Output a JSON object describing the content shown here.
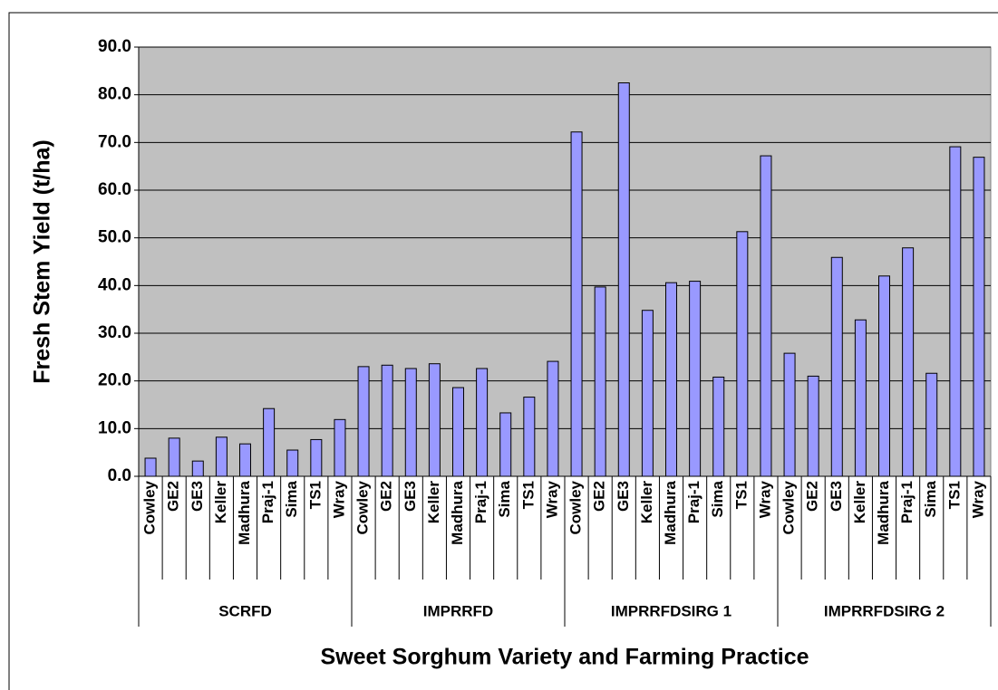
{
  "chart_data": {
    "type": "grouped-category-bar",
    "y_label": "Fresh Stem Yield (t/ha)",
    "x_label": "Sweet Sorghum Variety and Farming Practice",
    "color": "#9999ff",
    "ylim": [
      0,
      90
    ],
    "yticks": [
      {
        "value": 0,
        "label": "0.0"
      },
      {
        "value": 10,
        "label": "10.0"
      },
      {
        "value": 20,
        "label": "20.0"
      },
      {
        "value": 30,
        "label": "30.0"
      },
      {
        "value": 40,
        "label": "40.0"
      },
      {
        "value": 50,
        "label": "50.0"
      },
      {
        "value": 60,
        "label": "60.0"
      },
      {
        "value": 70,
        "label": "70.0"
      },
      {
        "value": 80,
        "label": "80.0"
      },
      {
        "value": 90,
        "label": "90.0"
      }
    ],
    "grid": true,
    "groups": [
      {
        "name": "SCRFD",
        "categories": [
          "Cowley",
          "GE2",
          "GE3",
          "Keller",
          "Madhura",
          "Praj-1",
          "Sima",
          "TS1",
          "Wray"
        ],
        "values": [
          3.8,
          8.0,
          3.2,
          8.2,
          6.8,
          14.2,
          5.5,
          7.7,
          11.9
        ]
      },
      {
        "name": "IMPRRFD",
        "categories": [
          "Cowley",
          "GE2",
          "GE3",
          "Keller",
          "Madhura",
          "Praj-1",
          "Sima",
          "TS1",
          "Wray"
        ],
        "values": [
          23.0,
          23.3,
          22.6,
          23.6,
          18.6,
          22.6,
          13.3,
          16.6,
          24.1
        ]
      },
      {
        "name": "IMPRRFDSIRG 1",
        "categories": [
          "Cowley",
          "GE2",
          "GE3",
          "Keller",
          "Madhura",
          "Praj-1",
          "Sima",
          "TS1",
          "Wray"
        ],
        "values": [
          72.2,
          39.7,
          82.5,
          34.8,
          40.6,
          40.9,
          20.8,
          51.3,
          67.2
        ]
      },
      {
        "name": "IMPRRFDSIRG 2",
        "categories": [
          "Cowley",
          "GE2",
          "GE3",
          "Keller",
          "Madhura",
          "Praj-1",
          "Sima",
          "TS1",
          "Wray"
        ],
        "values": [
          25.8,
          21.0,
          45.9,
          32.8,
          42.0,
          47.9,
          21.6,
          69.1,
          66.9
        ]
      }
    ]
  }
}
